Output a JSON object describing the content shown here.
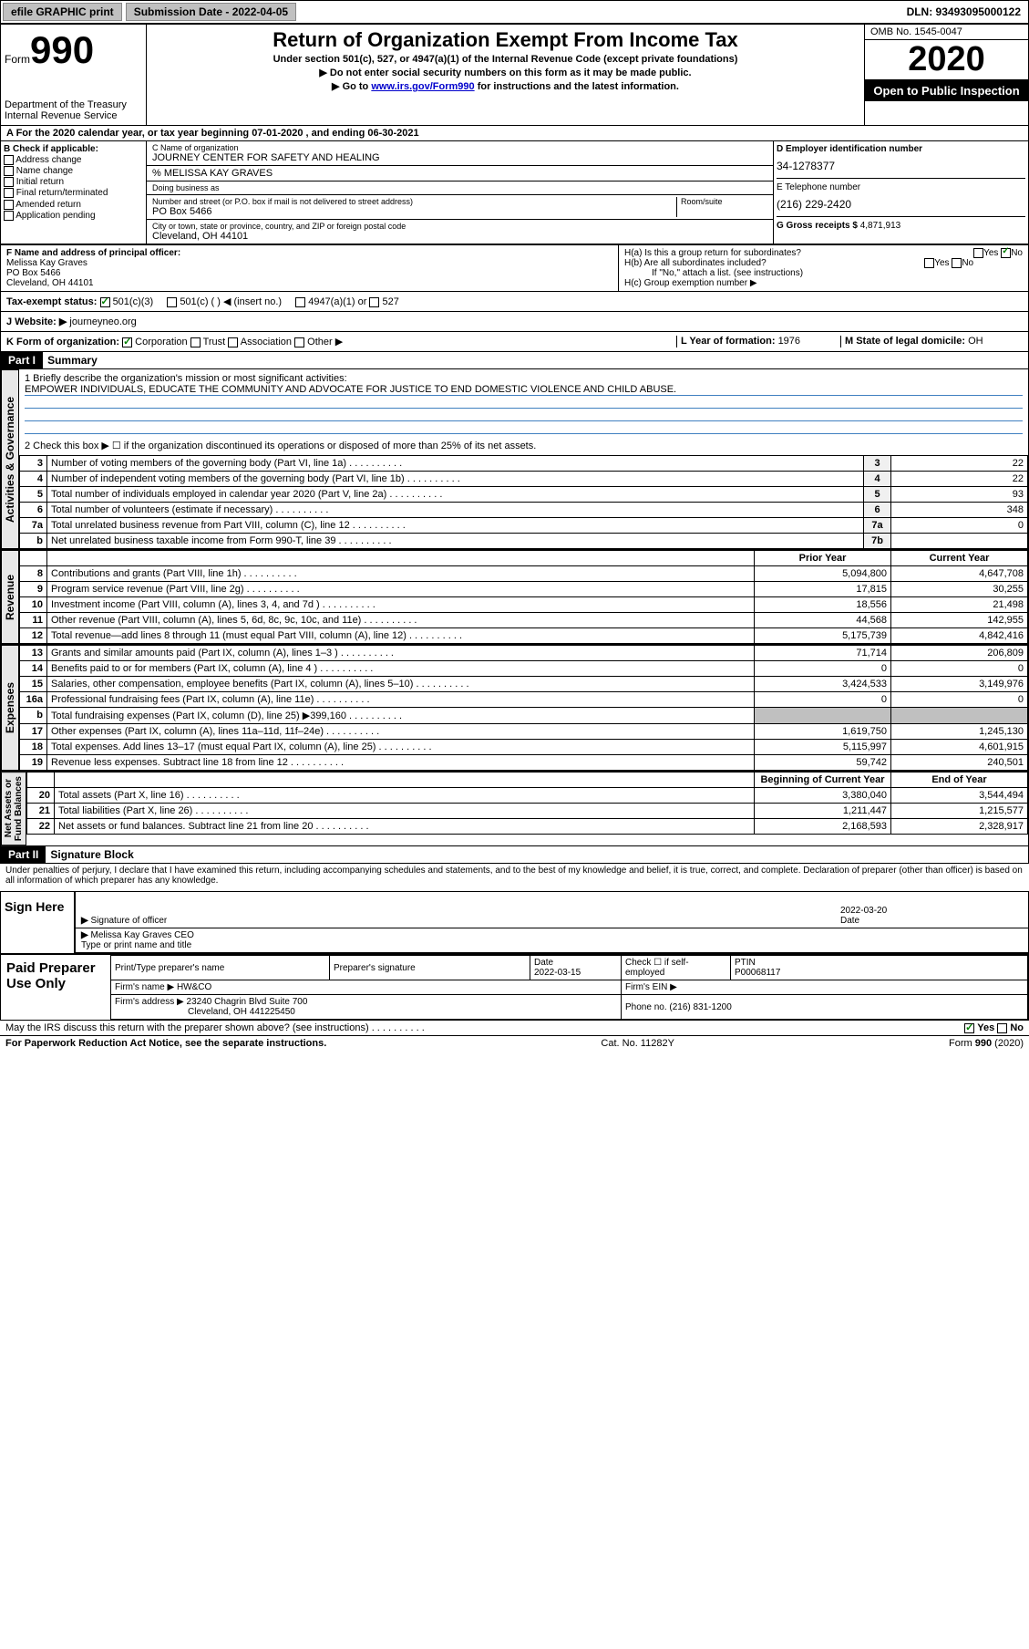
{
  "header": {
    "efile": "efile GRAPHIC print",
    "submission": "Submission Date - 2022-04-05",
    "dln": "DLN: 93493095000122"
  },
  "formbox": {
    "form": "Form",
    "num": "990",
    "dept": "Department of the Treasury\nInternal Revenue Service",
    "title": "Return of Organization Exempt From Income Tax",
    "sub1": "Under section 501(c), 527, or 4947(a)(1) of the Internal Revenue Code (except private foundations)",
    "sub2": "▶ Do not enter social security numbers on this form as it may be made public.",
    "sub3_pre": "▶ Go to ",
    "sub3_link": "www.irs.gov/Form990",
    "sub3_post": " for instructions and the latest information.",
    "omb": "OMB No. 1545-0047",
    "year": "2020",
    "opi": "Open to Public Inspection"
  },
  "a": {
    "text": "A For the 2020 calendar year, or tax year beginning 07-01-2020    , and ending 06-30-2021"
  },
  "b": {
    "hdr": "B Check if applicable:",
    "opts": [
      "Address change",
      "Name change",
      "Initial return",
      "Final return/terminated",
      "Amended return",
      "Application pending"
    ]
  },
  "c": {
    "name_lbl": "C Name of organization",
    "name": "JOURNEY CENTER FOR SAFETY AND HEALING",
    "care": "% MELISSA KAY GRAVES",
    "dba_lbl": "Doing business as",
    "addr_lbl": "Number and street (or P.O. box if mail is not delivered to street address)",
    "room_lbl": "Room/suite",
    "addr": "PO Box 5466",
    "city_lbl": "City or town, state or province, country, and ZIP or foreign postal code",
    "city": "Cleveland, OH  44101"
  },
  "d": {
    "ein_lbl": "D Employer identification number",
    "ein": "34-1278377",
    "tel_lbl": "E Telephone number",
    "tel": "(216) 229-2420",
    "gross_lbl": "G Gross receipts $ ",
    "gross": "4,871,913"
  },
  "f": {
    "lbl": "F Name and address of principal officer:",
    "name": "Melissa Kay Graves",
    "addr": "PO Box 5466",
    "city": "Cleveland, OH  44101"
  },
  "h": {
    "a": "H(a)  Is this a group return for subordinates?",
    "b": "H(b)  Are all subordinates included?",
    "b_note": "If \"No,\" attach a list. (see instructions)",
    "c": "H(c)  Group exemption number ▶"
  },
  "i": {
    "lbl": "Tax-exempt status:",
    "o1": "501(c)(3)",
    "o2": "501(c) (  ) ◀ (insert no.)",
    "o3": "4947(a)(1) or",
    "o4": "527"
  },
  "j": {
    "lbl": "J  Website: ▶",
    "val": "journeyneo.org"
  },
  "k": {
    "lbl": "K Form of organization:",
    "o1": "Corporation",
    "o2": "Trust",
    "o3": "Association",
    "o4": "Other ▶"
  },
  "l": {
    "lbl": "L Year of formation: ",
    "val": "1976"
  },
  "m": {
    "lbl": "M State of legal domicile: ",
    "val": "OH"
  },
  "part1": {
    "hdr": "Part I",
    "title": "Summary",
    "q1": "1  Briefly describe the organization's mission or most significant activities:",
    "mission": "EMPOWER INDIVIDUALS, EDUCATE THE COMMUNITY AND ADVOCATE FOR JUSTICE TO END DOMESTIC VIOLENCE AND CHILD ABUSE.",
    "q2": "2    Check this box ▶ ☐  if the organization discontinued its operations or disposed of more than 25% of its net assets.",
    "rows_ag": [
      {
        "n": "3",
        "t": "Number of voting members of the governing body (Part VI, line 1a)",
        "k": "3",
        "v": "22"
      },
      {
        "n": "4",
        "t": "Number of independent voting members of the governing body (Part VI, line 1b)",
        "k": "4",
        "v": "22"
      },
      {
        "n": "5",
        "t": "Total number of individuals employed in calendar year 2020 (Part V, line 2a)",
        "k": "5",
        "v": "93"
      },
      {
        "n": "6",
        "t": "Total number of volunteers (estimate if necessary)",
        "k": "6",
        "v": "348"
      },
      {
        "n": "7a",
        "t": "Total unrelated business revenue from Part VIII, column (C), line 12",
        "k": "7a",
        "v": "0"
      },
      {
        "n": "b",
        "t": "Net unrelated business taxable income from Form 990-T, line 39",
        "k": "7b",
        "v": ""
      }
    ],
    "col_hdrs": {
      "prior": "Prior Year",
      "current": "Current Year"
    },
    "rows_rev": [
      {
        "n": "8",
        "t": "Contributions and grants (Part VIII, line 1h)",
        "p": "5,094,800",
        "c": "4,647,708"
      },
      {
        "n": "9",
        "t": "Program service revenue (Part VIII, line 2g)",
        "p": "17,815",
        "c": "30,255"
      },
      {
        "n": "10",
        "t": "Investment income (Part VIII, column (A), lines 3, 4, and 7d )",
        "p": "18,556",
        "c": "21,498"
      },
      {
        "n": "11",
        "t": "Other revenue (Part VIII, column (A), lines 5, 6d, 8c, 9c, 10c, and 11e)",
        "p": "44,568",
        "c": "142,955"
      },
      {
        "n": "12",
        "t": "Total revenue—add lines 8 through 11 (must equal Part VIII, column (A), line 12)",
        "p": "5,175,739",
        "c": "4,842,416"
      }
    ],
    "rows_exp": [
      {
        "n": "13",
        "t": "Grants and similar amounts paid (Part IX, column (A), lines 1–3 )",
        "p": "71,714",
        "c": "206,809"
      },
      {
        "n": "14",
        "t": "Benefits paid to or for members (Part IX, column (A), line 4 )",
        "p": "0",
        "c": "0"
      },
      {
        "n": "15",
        "t": "Salaries, other compensation, employee benefits (Part IX, column (A), lines 5–10)",
        "p": "3,424,533",
        "c": "3,149,976"
      },
      {
        "n": "16a",
        "t": "Professional fundraising fees (Part IX, column (A), line 11e)",
        "p": "0",
        "c": "0"
      },
      {
        "n": "b",
        "t": "Total fundraising expenses (Part IX, column (D), line 25) ▶399,160",
        "p": "",
        "c": ""
      },
      {
        "n": "17",
        "t": "Other expenses (Part IX, column (A), lines 11a–11d, 11f–24e)",
        "p": "1,619,750",
        "c": "1,245,130"
      },
      {
        "n": "18",
        "t": "Total expenses. Add lines 13–17 (must equal Part IX, column (A), line 25)",
        "p": "5,115,997",
        "c": "4,601,915"
      },
      {
        "n": "19",
        "t": "Revenue less expenses. Subtract line 18 from line 12",
        "p": "59,742",
        "c": "240,501"
      }
    ],
    "col_hdrs2": {
      "begin": "Beginning of Current Year",
      "end": "End of Year"
    },
    "rows_na": [
      {
        "n": "20",
        "t": "Total assets (Part X, line 16)",
        "p": "3,380,040",
        "c": "3,544,494"
      },
      {
        "n": "21",
        "t": "Total liabilities (Part X, line 26)",
        "p": "1,211,447",
        "c": "1,215,577"
      },
      {
        "n": "22",
        "t": "Net assets or fund balances. Subtract line 21 from line 20",
        "p": "2,168,593",
        "c": "2,328,917"
      }
    ],
    "vtabs": {
      "ag": "Activities & Governance",
      "rev": "Revenue",
      "exp": "Expenses",
      "na": "Net Assets or\nFund Balances"
    }
  },
  "part2": {
    "hdr": "Part II",
    "title": "Signature Block",
    "decl": "Under penalties of perjury, I declare that I have examined this return, including accompanying schedules and statements, and to the best of my knowledge and belief, it is true, correct, and complete. Declaration of preparer (other than officer) is based on all information of which preparer has any knowledge."
  },
  "sign": {
    "lbl": "Sign Here",
    "sig_lbl": "Signature of officer",
    "date": "2022-03-20",
    "date_lbl": "Date",
    "name": "Melissa Kay Graves CEO",
    "name_lbl": "Type or print name and title"
  },
  "paid": {
    "lbl": "Paid Preparer Use Only",
    "pname_lbl": "Print/Type preparer's name",
    "psig_lbl": "Preparer's signature",
    "pdate_lbl": "Date",
    "pdate": "2022-03-15",
    "check_lbl": "Check ☐ if self-employed",
    "ptin_lbl": "PTIN",
    "ptin": "P00068117",
    "firm_lbl": "Firm's name   ▶",
    "firm": "HW&CO",
    "fein_lbl": "Firm's EIN ▶",
    "faddr_lbl": "Firm's address ▶",
    "faddr1": "23240 Chagrin Blvd Suite 700",
    "faddr2": "Cleveland, OH  441225450",
    "phone_lbl": "Phone no. ",
    "phone": "(216) 831-1200"
  },
  "footer": {
    "discuss": "May the IRS discuss this return with the preparer shown above? (see instructions)",
    "yes": "Yes",
    "no": "No",
    "pra": "For Paperwork Reduction Act Notice, see the separate instructions.",
    "cat": "Cat. No. 11282Y",
    "form": "Form 990 (2020)"
  }
}
